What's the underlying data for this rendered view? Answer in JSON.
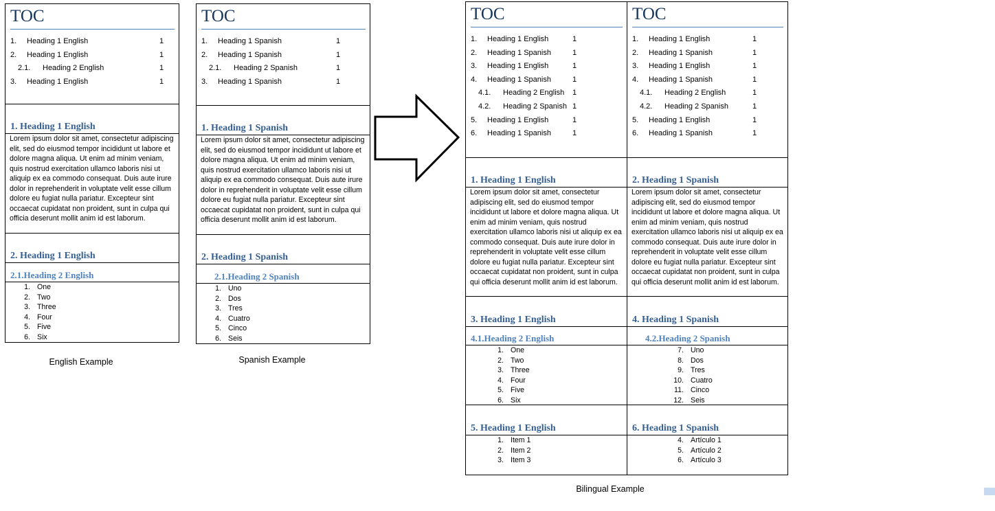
{
  "english": {
    "toc_title": "TOC",
    "toc": [
      {
        "num": "1.",
        "text": "Heading 1 English",
        "page": "1",
        "level": 1
      },
      {
        "num": "2.",
        "text": "Heading 1 English",
        "page": "1",
        "level": 1
      },
      {
        "num": "2.1.",
        "text": "Heading 2 English",
        "page": "1",
        "level": 2
      },
      {
        "num": "3.",
        "text": "Heading 1 English",
        "page": "1",
        "level": 1
      }
    ],
    "sections": [
      {
        "type": "h1",
        "text": "1.  Heading 1 English"
      },
      {
        "type": "p",
        "text": "Lorem ipsum dolor sit amet, consectetur adipiscing elit, sed do eiusmod tempor incididunt ut labore et dolore magna aliqua. Ut enim ad minim veniam, quis nostrud exercitation ullamco laboris nisi ut aliquip ex ea commodo consequat. Duis aute irure dolor in reprehenderit in voluptate velit esse cillum dolore eu fugiat nulla pariatur. Excepteur sint occaecat cupidatat non proident, sunt in culpa qui officia deserunt mollit anim id est laborum."
      },
      {
        "type": "h1",
        "text": "2.  Heading 1 English"
      },
      {
        "type": "h2",
        "text": "2.1.Heading 2 English"
      },
      {
        "type": "list",
        "items": [
          {
            "n": "1.",
            "t": "One"
          },
          {
            "n": "2.",
            "t": "Two"
          },
          {
            "n": "3.",
            "t": "Three"
          },
          {
            "n": "4.",
            "t": "Four"
          },
          {
            "n": "5.",
            "t": "Five"
          },
          {
            "n": "6.",
            "t": "Six"
          }
        ]
      }
    ],
    "caption": "English Example"
  },
  "spanish": {
    "toc_title": "TOC",
    "toc": [
      {
        "num": "1.",
        "text": "Heading 1 Spanish",
        "page": "1",
        "level": 1
      },
      {
        "num": "2.",
        "text": "Heading 1 Spanish",
        "page": "1",
        "level": 1
      },
      {
        "num": "2.1.",
        "text": "Heading 2 Spanish",
        "page": "1",
        "level": 2
      },
      {
        "num": "3.",
        "text": "Heading 1 Spanish",
        "page": "1",
        "level": 1
      }
    ],
    "sections": [
      {
        "type": "h1",
        "text": "1.  Heading 1 Spanish"
      },
      {
        "type": "p",
        "text": "Lorem ipsum dolor sit amet, consectetur adipiscing elit, sed do eiusmod tempor incididunt ut labore et dolore magna aliqua. Ut enim ad minim veniam, quis nostrud exercitation ullamco laboris nisi ut aliquip ex ea commodo consequat. Duis aute irure dolor in reprehenderit in voluptate velit esse cillum dolore eu fugiat nulla pariatur. Excepteur sint occaecat cupidatat non proident, sunt in culpa qui officia deserunt mollit anim id est laborum."
      },
      {
        "type": "h1",
        "text": "2.  Heading 1 Spanish"
      },
      {
        "type": "h2",
        "text": "2.1.Heading 2 Spanish"
      },
      {
        "type": "list",
        "items": [
          {
            "n": "1.",
            "t": "Uno"
          },
          {
            "n": "2.",
            "t": "Dos"
          },
          {
            "n": "3.",
            "t": "Tres"
          },
          {
            "n": "4.",
            "t": "Cuatro"
          },
          {
            "n": "5.",
            "t": "Cinco"
          },
          {
            "n": "6.",
            "t": "Seis"
          }
        ]
      }
    ],
    "caption": "Spanish Example"
  },
  "bilingual": {
    "left": {
      "toc_title": "TOC",
      "toc": [
        {
          "num": "1.",
          "text": "Heading 1 English",
          "page": "1",
          "level": 1
        },
        {
          "num": "2.",
          "text": "Heading 1 Spanish",
          "page": "1",
          "level": 1
        },
        {
          "num": "3.",
          "text": "Heading 1 English",
          "page": "1",
          "level": 1
        },
        {
          "num": "4.",
          "text": "Heading 1 Spanish",
          "page": "1",
          "level": 1
        },
        {
          "num": "4.1.",
          "text": "Heading 2 English",
          "page": "1",
          "level": 2
        },
        {
          "num": "4.2.",
          "text": "Heading 2 Spanish",
          "page": "1",
          "level": 2
        },
        {
          "num": "5.",
          "text": "Heading 1 English",
          "page": "1",
          "level": 1
        },
        {
          "num": "6.",
          "text": "Heading 1 Spanish",
          "page": "1",
          "level": 1
        }
      ],
      "sections": [
        {
          "type": "h1",
          "text": "1.  Heading 1 English"
        },
        {
          "type": "p",
          "text": "Lorem ipsum dolor sit amet, consectetur adipiscing elit, sed do eiusmod tempor incididunt ut labore et dolore magna aliqua. Ut enim ad minim veniam, quis nostrud exercitation ullamco laboris nisi ut aliquip ex ea commodo consequat. Duis aute irure dolor in reprehenderit in voluptate velit esse cillum dolore eu fugiat nulla pariatur. Excepteur sint occaecat cupidatat non proident, sunt in culpa qui officia deserunt mollit anim id est laborum."
        },
        {
          "type": "h1",
          "text": "3.  Heading 1 English"
        },
        {
          "type": "h2",
          "text": "4.1.Heading 2 English"
        },
        {
          "type": "list",
          "items": [
            {
              "n": "1.",
              "t": "One"
            },
            {
              "n": "2.",
              "t": "Two"
            },
            {
              "n": "3.",
              "t": "Three"
            },
            {
              "n": "4.",
              "t": "Four"
            },
            {
              "n": "5.",
              "t": "Five"
            },
            {
              "n": "6.",
              "t": "Six"
            }
          ]
        },
        {
          "type": "h1",
          "text": "5.  Heading 1 English"
        },
        {
          "type": "list",
          "items": [
            {
              "n": "1.",
              "t": "Item 1"
            },
            {
              "n": "2.",
              "t": "Item 2"
            },
            {
              "n": "3.",
              "t": "Item 3"
            }
          ]
        }
      ]
    },
    "right": {
      "toc_title": "TOC",
      "toc": [
        {
          "num": "1.",
          "text": "Heading 1 English",
          "page": "1",
          "level": 1
        },
        {
          "num": "2.",
          "text": "Heading 1 Spanish",
          "page": "1",
          "level": 1
        },
        {
          "num": "3.",
          "text": "Heading 1 English",
          "page": "1",
          "level": 1
        },
        {
          "num": "4.",
          "text": "Heading 1 Spanish",
          "page": "1",
          "level": 1
        },
        {
          "num": "4.1.",
          "text": "Heading 2 English",
          "page": "1",
          "level": 2
        },
        {
          "num": "4.2.",
          "text": "Heading 2 Spanish",
          "page": "1",
          "level": 2
        },
        {
          "num": "5.",
          "text": "Heading 1 English",
          "page": "1",
          "level": 1
        },
        {
          "num": "6.",
          "text": "Heading 1 Spanish",
          "page": "1",
          "level": 1
        }
      ],
      "sections": [
        {
          "type": "h1",
          "text": "2.  Heading 1 Spanish"
        },
        {
          "type": "p",
          "text": "Lorem ipsum dolor sit amet, consectetur adipiscing elit, sed do eiusmod tempor incididunt ut labore et dolore magna aliqua. Ut enim ad minim veniam, quis nostrud exercitation ullamco laboris nisi ut aliquip ex ea commodo consequat. Duis aute irure dolor in reprehenderit in voluptate velit esse cillum dolore eu fugiat nulla pariatur. Excepteur sint occaecat cupidatat non proident, sunt in culpa qui officia deserunt mollit anim id est laborum."
        },
        {
          "type": "h1",
          "text": "4.  Heading 1 Spanish"
        },
        {
          "type": "h2",
          "text": "4.2.Heading 2 Spanish"
        },
        {
          "type": "list",
          "items": [
            {
              "n": "7.",
              "t": "Uno"
            },
            {
              "n": "8.",
              "t": "Dos"
            },
            {
              "n": "9.",
              "t": "Tres"
            },
            {
              "n": "10.",
              "t": "Cuatro"
            },
            {
              "n": "11.",
              "t": "Cinco"
            },
            {
              "n": "12.",
              "t": "Seis"
            }
          ]
        },
        {
          "type": "h1",
          "text": "6.  Heading 1 Spanish"
        },
        {
          "type": "list",
          "items": [
            {
              "n": "4.",
              "t": "Artículo 1"
            },
            {
              "n": "5.",
              "t": "Artículo 2"
            },
            {
              "n": "6.",
              "t": "Artículo 3"
            }
          ]
        }
      ]
    },
    "caption": "Bilingual Example"
  },
  "arrow_icon": "right-arrow-outline"
}
